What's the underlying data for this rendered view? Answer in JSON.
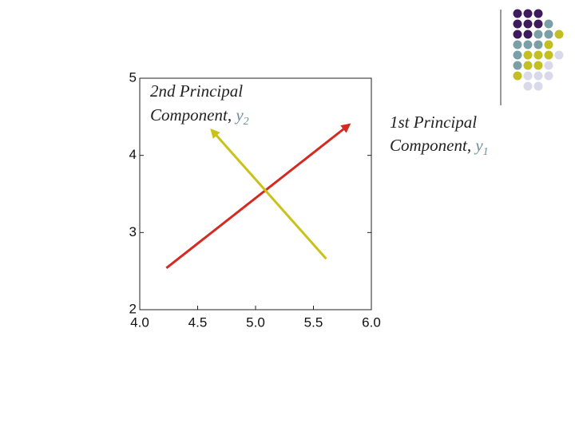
{
  "chart_data": {
    "type": "line",
    "xlim": [
      4.0,
      6.0
    ],
    "xticks": [
      {
        "value": 4.0,
        "label": "4.0"
      },
      {
        "value": 4.5,
        "label": "4.5"
      },
      {
        "value": 5.0,
        "label": "5.0"
      },
      {
        "value": 5.5,
        "label": "5.5"
      },
      {
        "value": 6.0,
        "label": "6.0"
      }
    ],
    "ylim": [
      2,
      5
    ],
    "yticks": [
      2,
      3,
      4,
      5
    ],
    "series": [
      {
        "color": "#d42a22",
        "x": [
          4.23,
          5.81
        ],
        "values": [
          2.54,
          4.4
        ]
      },
      {
        "color": "#c9c21a",
        "x": [
          5.61,
          4.62
        ],
        "values": [
          2.66,
          4.33
        ]
      }
    ],
    "annotations": [
      {
        "line1": "2nd Principal",
        "line2": "Component,",
        "var": "y",
        "sub": "2"
      },
      {
        "line1": "1st Principal",
        "line2": "Component,",
        "var": "y",
        "sub": "1"
      }
    ]
  }
}
